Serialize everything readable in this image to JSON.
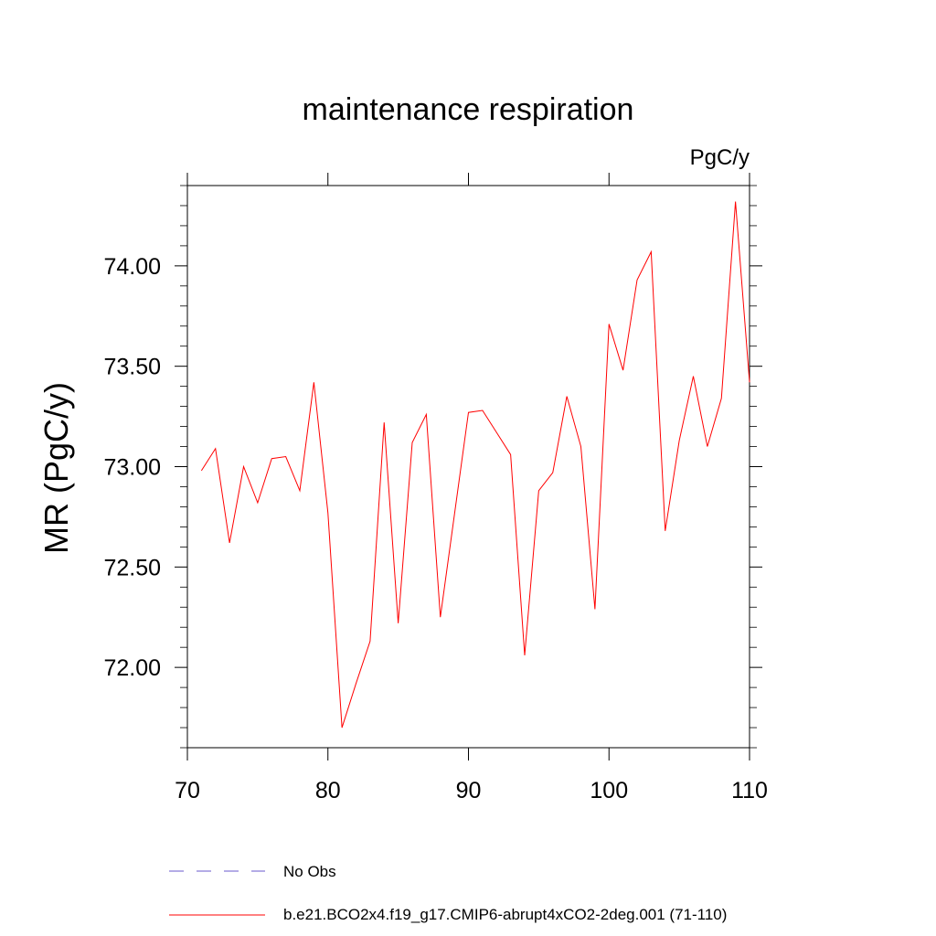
{
  "chart_data": {
    "type": "line",
    "title": "maintenance respiration",
    "units_label": "PgC/y",
    "ylabel": "MR  (PgC/y)",
    "xlabel": "",
    "xlim": [
      70,
      110
    ],
    "ylim": [
      71.6,
      74.4
    ],
    "x_ticks": [
      70,
      80,
      90,
      100,
      110
    ],
    "x_tick_labels": [
      "70",
      "80",
      "90",
      "100",
      "110"
    ],
    "y_ticks": [
      72.0,
      72.5,
      73.0,
      73.5,
      74.0
    ],
    "y_tick_labels": [
      "72.00",
      "72.50",
      "73.00",
      "73.50",
      "74.00"
    ],
    "grid": false,
    "series": [
      {
        "name": "b.e21.BCO2x4.f19_g17.CMIP6-abrupt4xCO2-2deg.001 (71-110)",
        "color": "#ff0000",
        "style": "solid",
        "x": [
          71,
          72,
          73,
          74,
          75,
          76,
          77,
          78,
          79,
          80,
          81,
          82,
          83,
          84,
          85,
          86,
          87,
          88,
          89,
          90,
          91,
          92,
          93,
          94,
          95,
          96,
          97,
          98,
          99,
          100,
          101,
          102,
          103,
          104,
          105,
          106,
          107,
          108,
          109,
          110
        ],
        "y": [
          72.98,
          73.09,
          72.62,
          73.0,
          72.82,
          73.04,
          73.05,
          72.88,
          73.42,
          72.77,
          71.7,
          71.92,
          72.13,
          73.22,
          72.22,
          73.12,
          73.26,
          72.25,
          72.76,
          73.27,
          73.28,
          73.17,
          73.06,
          72.06,
          72.88,
          72.97,
          73.35,
          73.1,
          72.29,
          73.71,
          73.48,
          73.93,
          74.07,
          72.68,
          73.13,
          73.45,
          73.1,
          73.34,
          74.32,
          73.42
        ]
      }
    ],
    "legend": [
      {
        "label": "No Obs",
        "color": "#6a5acd",
        "style": "dashed"
      },
      {
        "label": "b.e21.BCO2x4.f19_g17.CMIP6-abrupt4xCO2-2deg.001 (71-110)",
        "color": "#ff0000",
        "style": "solid"
      }
    ]
  }
}
